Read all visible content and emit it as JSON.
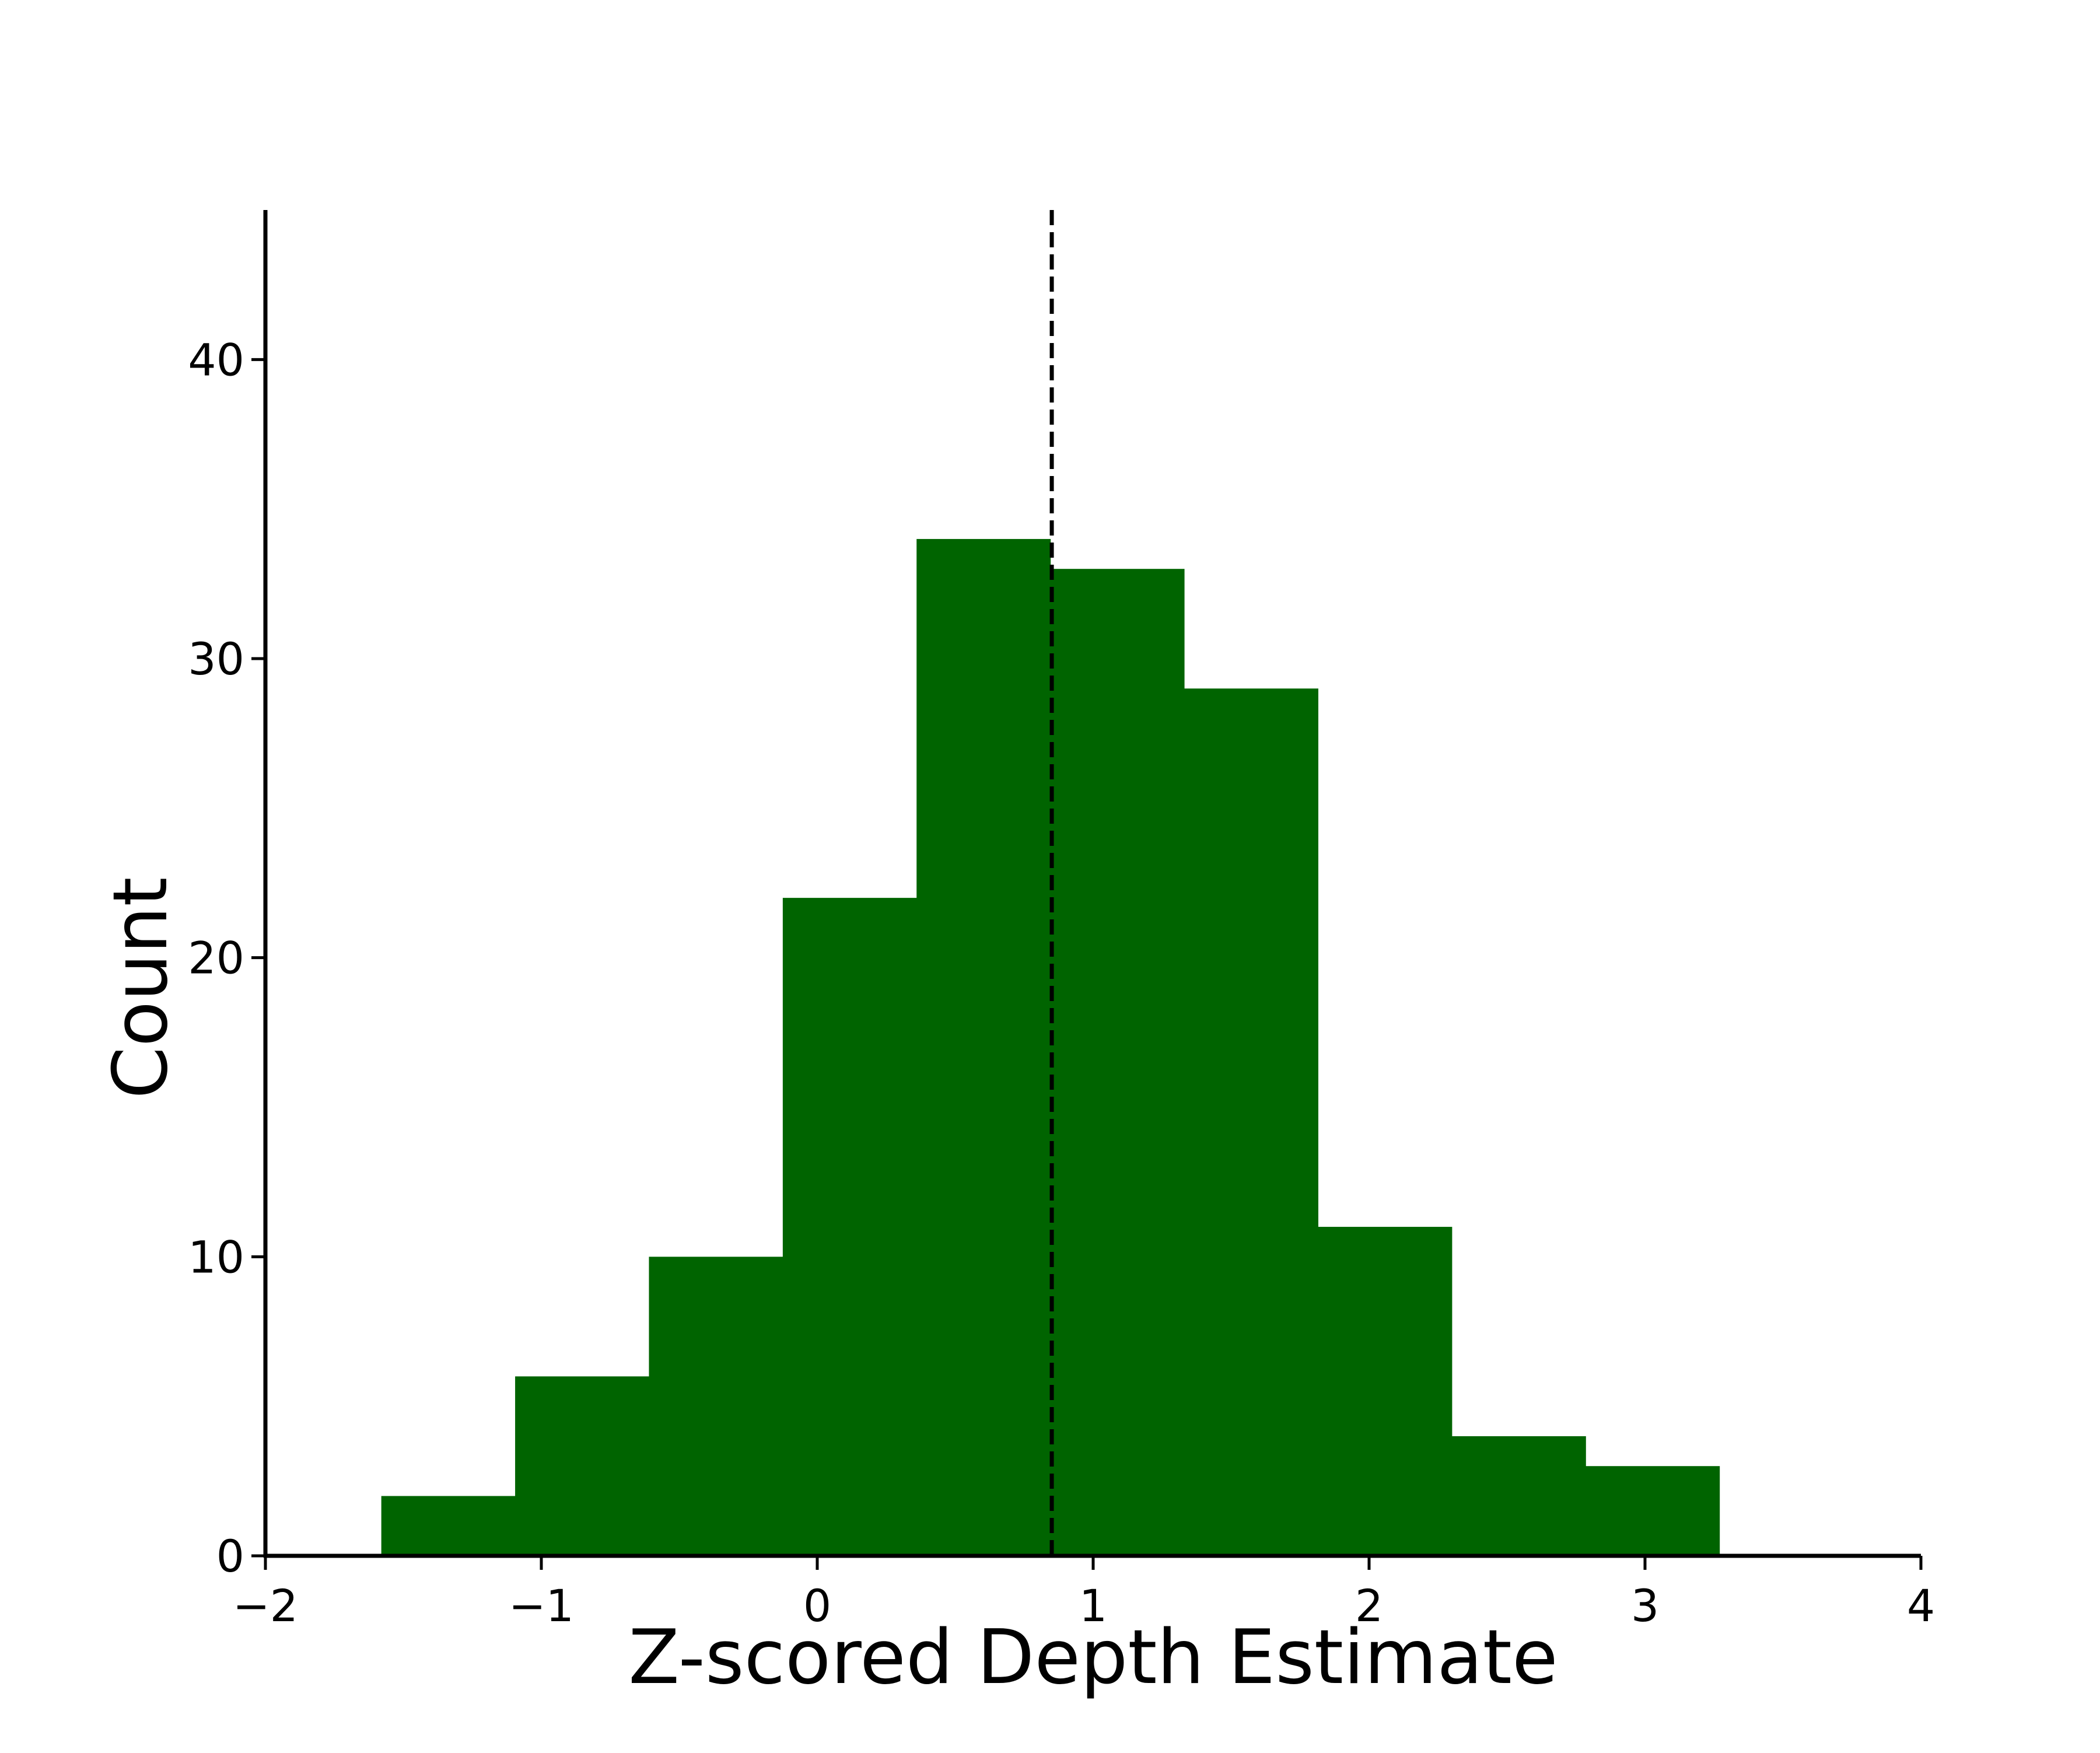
{
  "chart_data": {
    "type": "bar",
    "subtype": "histogram",
    "xlabel": "Z-scored Depth Estimate",
    "ylabel": "Count",
    "xlim": [
      -2,
      4
    ],
    "ylim": [
      0,
      45
    ],
    "x_ticks": [
      -2,
      -1,
      0,
      1,
      2,
      3,
      4
    ],
    "x_tick_labels": [
      "−2",
      "−1",
      "0",
      "1",
      "2",
      "3",
      "4"
    ],
    "y_ticks": [
      0,
      10,
      20,
      30,
      40
    ],
    "y_tick_labels": [
      "0",
      "10",
      "20",
      "30",
      "40"
    ],
    "bin_edges": [
      -1.58,
      -1.095,
      -0.61,
      -0.125,
      0.36,
      0.845,
      1.33,
      1.815,
      2.3,
      2.785,
      3.27
    ],
    "counts": [
      2,
      6,
      10,
      22,
      34,
      33,
      29,
      11,
      4,
      3
    ],
    "bar_color": "#006400",
    "reference_line": {
      "x": 0.85,
      "style": "dashed",
      "color": "#000000"
    },
    "grid": false,
    "legend": "none"
  }
}
